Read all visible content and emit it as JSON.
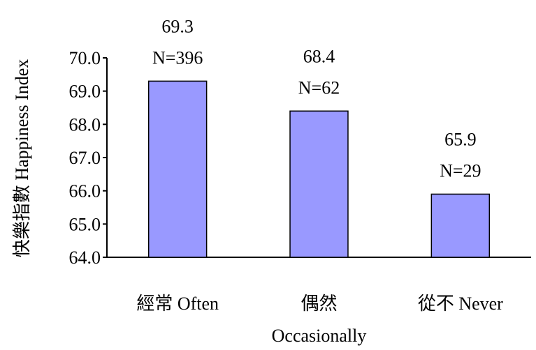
{
  "chart_data": {
    "type": "bar",
    "ylabel": "快樂指數 Happiness Index",
    "xlabel": "",
    "ylim": [
      64.0,
      70.0
    ],
    "ytick_step": 1.0,
    "y_tick_labels": [
      "64.0",
      "65.0",
      "66.0",
      "67.0",
      "68.0",
      "69.0",
      "70.0"
    ],
    "grid": false,
    "legend": "none",
    "categories": [
      [
        "經常 Often"
      ],
      [
        "偶然",
        "Occasionally"
      ],
      [
        "從不 Never"
      ]
    ],
    "values": [
      69.3,
      68.4,
      65.9
    ],
    "value_labels": [
      "69.3",
      "68.4",
      "65.9"
    ],
    "n_labels": [
      "N=396",
      "N=62",
      "N=29"
    ],
    "bar_color": "#9999ff",
    "bar_edge_color": "#000000"
  }
}
